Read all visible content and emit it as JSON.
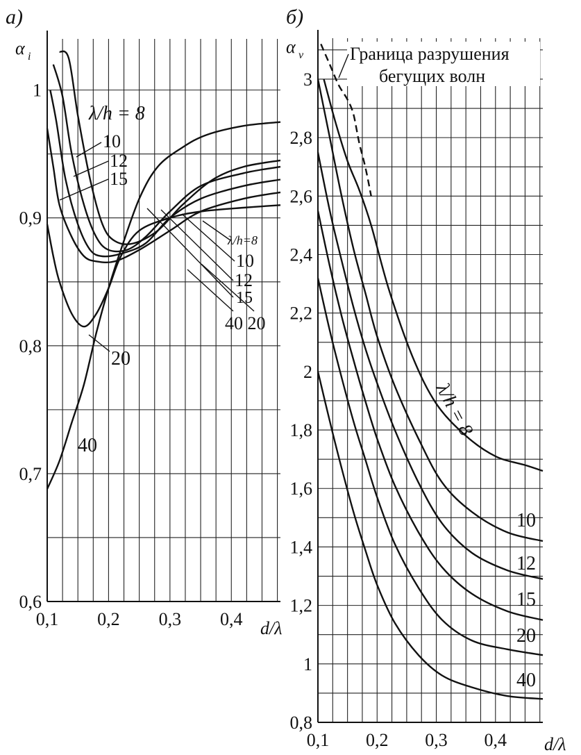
{
  "chart_data": [
    {
      "type": "line",
      "panel_label": "а)",
      "ylabel": "α",
      "ylabel_sub": "i",
      "xlabel": "d/λ",
      "xlim": [
        0.1,
        0.48
      ],
      "ylim": [
        0.6,
        1.04
      ],
      "xticks": [
        "0,1",
        "0,2",
        "0,3",
        "0,4"
      ],
      "xtick_values": [
        0.1,
        0.2,
        0.3,
        0.4
      ],
      "yticks": [
        "0,6",
        "0,7",
        "0,8",
        "0,9",
        "1"
      ],
      "ytick_values": [
        0.6,
        0.7,
        0.8,
        0.9,
        1.0
      ],
      "grid": true,
      "legend_left_title": "λ/h = 8",
      "legend_right_title": "λ/h=8",
      "series": [
        {
          "name": "8",
          "x": [
            0.12,
            0.135,
            0.15,
            0.17,
            0.19,
            0.21,
            0.24,
            0.28,
            0.32,
            0.37,
            0.42,
            0.48
          ],
          "y": [
            1.03,
            1.025,
            0.98,
            0.93,
            0.895,
            0.882,
            0.88,
            0.89,
            0.91,
            0.93,
            0.94,
            0.945
          ]
        },
        {
          "name": "10",
          "x": [
            0.11,
            0.125,
            0.14,
            0.16,
            0.18,
            0.2,
            0.23,
            0.26,
            0.3,
            0.35,
            0.42,
            0.48
          ],
          "y": [
            1.02,
            0.995,
            0.95,
            0.91,
            0.885,
            0.875,
            0.875,
            0.885,
            0.905,
            0.925,
            0.935,
            0.94
          ]
        },
        {
          "name": "12",
          "x": [
            0.105,
            0.115,
            0.13,
            0.15,
            0.17,
            0.19,
            0.22,
            0.26,
            0.3,
            0.35,
            0.42,
            0.48
          ],
          "y": [
            1.0,
            0.975,
            0.93,
            0.895,
            0.875,
            0.87,
            0.872,
            0.88,
            0.9,
            0.915,
            0.925,
            0.93
          ]
        },
        {
          "name": "15",
          "x": [
            0.1,
            0.11,
            0.12,
            0.14,
            0.16,
            0.18,
            0.21,
            0.25,
            0.3,
            0.35,
            0.42,
            0.48
          ],
          "y": [
            0.97,
            0.94,
            0.91,
            0.885,
            0.87,
            0.866,
            0.866,
            0.875,
            0.89,
            0.905,
            0.915,
            0.92
          ]
        },
        {
          "name": "20",
          "x": [
            0.1,
            0.11,
            0.12,
            0.14,
            0.16,
            0.18,
            0.2,
            0.22,
            0.25,
            0.3,
            0.35,
            0.42,
            0.48
          ],
          "y": [
            0.895,
            0.87,
            0.85,
            0.825,
            0.815,
            0.825,
            0.845,
            0.87,
            0.89,
            0.9,
            0.905,
            0.908,
            0.91
          ]
        },
        {
          "name": "40",
          "x": [
            0.1,
            0.12,
            0.14,
            0.16,
            0.18,
            0.2,
            0.22,
            0.25,
            0.28,
            0.32,
            0.36,
            0.42,
            0.48
          ],
          "y": [
            0.688,
            0.71,
            0.74,
            0.77,
            0.81,
            0.845,
            0.875,
            0.915,
            0.94,
            0.955,
            0.965,
            0.972,
            0.975
          ]
        }
      ],
      "labels_left": [
        "10",
        "12",
        "15"
      ],
      "labels_right": [
        "10",
        "12",
        "15"
      ],
      "label_20": "20",
      "label_40": "40",
      "label_40_20": "40 20"
    },
    {
      "type": "line",
      "panel_label": "б)",
      "ylabel": "α",
      "ylabel_sub": "v",
      "xlabel": "d/λ",
      "xlim": [
        0.1,
        0.48
      ],
      "ylim": [
        0.8,
        3.14
      ],
      "xticks": [
        "0,1",
        "0,2",
        "0,3",
        "0,4"
      ],
      "xtick_values": [
        0.1,
        0.2,
        0.3,
        0.4
      ],
      "yticks": [
        "0,8",
        "1",
        "1,2",
        "1,4",
        "1,6",
        "1,8",
        "2",
        "2,2",
        "2,4",
        "2,6",
        "2,8",
        "3"
      ],
      "ytick_values": [
        0.8,
        1.0,
        1.2,
        1.4,
        1.6,
        1.8,
        2.0,
        2.2,
        2.4,
        2.6,
        2.8,
        3.0
      ],
      "grid": true,
      "boundary_label_line1": "Граница разрушения",
      "boundary_label_line2": "бегущих волн",
      "curve_label_8": "λ/h = 8",
      "series": [
        {
          "name": "8",
          "x": [
            0.11,
            0.13,
            0.15,
            0.17,
            0.19,
            0.22,
            0.26,
            0.3,
            0.35,
            0.4,
            0.45,
            0.48
          ],
          "y": [
            3.0,
            2.85,
            2.72,
            2.62,
            2.5,
            2.28,
            2.05,
            1.89,
            1.78,
            1.71,
            1.68,
            1.66
          ]
        },
        {
          "name": "10",
          "x": [
            0.1,
            0.12,
            0.14,
            0.16,
            0.18,
            0.2,
            0.23,
            0.27,
            0.31,
            0.36,
            0.42,
            0.48
          ],
          "y": [
            3.0,
            2.8,
            2.6,
            2.42,
            2.27,
            2.12,
            1.95,
            1.77,
            1.62,
            1.52,
            1.45,
            1.42
          ]
        },
        {
          "name": "12",
          "x": [
            0.1,
            0.12,
            0.14,
            0.16,
            0.18,
            0.2,
            0.23,
            0.27,
            0.31,
            0.36,
            0.42,
            0.48
          ],
          "y": [
            2.75,
            2.55,
            2.38,
            2.22,
            2.08,
            1.96,
            1.8,
            1.62,
            1.48,
            1.38,
            1.32,
            1.29
          ]
        },
        {
          "name": "15",
          "x": [
            0.1,
            0.12,
            0.14,
            0.16,
            0.18,
            0.2,
            0.23,
            0.27,
            0.31,
            0.36,
            0.42,
            0.48
          ],
          "y": [
            2.55,
            2.36,
            2.19,
            2.04,
            1.9,
            1.77,
            1.61,
            1.45,
            1.33,
            1.24,
            1.18,
            1.15
          ]
        },
        {
          "name": "20",
          "x": [
            0.1,
            0.12,
            0.14,
            0.16,
            0.18,
            0.2,
            0.23,
            0.27,
            0.31,
            0.36,
            0.42,
            0.48
          ],
          "y": [
            2.32,
            2.14,
            1.98,
            1.83,
            1.7,
            1.57,
            1.41,
            1.26,
            1.15,
            1.08,
            1.05,
            1.03
          ]
        },
        {
          "name": "40",
          "x": [
            0.1,
            0.12,
            0.14,
            0.16,
            0.18,
            0.2,
            0.23,
            0.27,
            0.31,
            0.36,
            0.42,
            0.48
          ],
          "y": [
            2.0,
            1.83,
            1.67,
            1.52,
            1.39,
            1.27,
            1.14,
            1.03,
            0.96,
            0.92,
            0.89,
            0.88
          ]
        },
        {
          "name": "boundary",
          "style": "dashed",
          "x": [
            0.105,
            0.12,
            0.135,
            0.15,
            0.16,
            0.17,
            0.18,
            0.19
          ],
          "y": [
            3.12,
            3.05,
            2.98,
            2.93,
            2.88,
            2.78,
            2.7,
            2.6
          ]
        }
      ],
      "labels_right": [
        "10",
        "12",
        "15",
        "20",
        "40"
      ]
    }
  ]
}
